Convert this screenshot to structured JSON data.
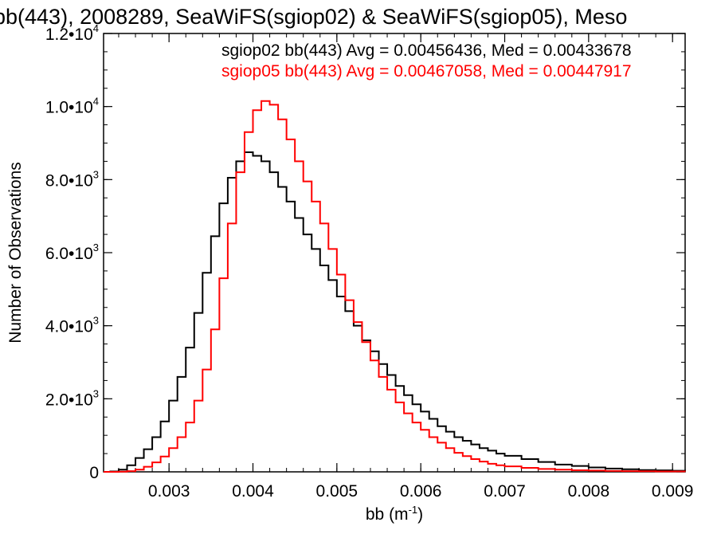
{
  "chart_data": {
    "type": "line",
    "title": "bb(443), 2008289, SeaWiFS(sgiop02) & SeaWiFS(sgiop05), Meso",
    "xlabel_main": "bb (m",
    "xlabel_sup": "-1",
    "xlabel_close": ")",
    "ylabel": "Number of Observations",
    "xlim": [
      0.00222,
      0.00915
    ],
    "ylim": [
      0,
      12000
    ],
    "x_ticks": [
      {
        "value": 0.003,
        "label": "0.003"
      },
      {
        "value": 0.004,
        "label": "0.004"
      },
      {
        "value": 0.005,
        "label": "0.005"
      },
      {
        "value": 0.006,
        "label": "0.006"
      },
      {
        "value": 0.007,
        "label": "0.007"
      },
      {
        "value": 0.008,
        "label": "0.008"
      },
      {
        "value": 0.009,
        "label": "0.009"
      }
    ],
    "y_ticks": [
      {
        "value": 0,
        "mant": "0",
        "exp": ""
      },
      {
        "value": 2000,
        "mant": "2.0•10",
        "exp": "3"
      },
      {
        "value": 4000,
        "mant": "4.0•10",
        "exp": "3"
      },
      {
        "value": 6000,
        "mant": "6.0•10",
        "exp": "3"
      },
      {
        "value": 8000,
        "mant": "8.0•10",
        "exp": "3"
      },
      {
        "value": 10000,
        "mant": "1.0•10",
        "exp": "4"
      },
      {
        "value": 12000,
        "mant": "1.2•10",
        "exp": "4"
      }
    ],
    "x_minor_step": 0.0002,
    "y_minor_step": 500,
    "step_histogram": true,
    "series": [
      {
        "name": "sgiop02 bb(443) Avg = 0.00456436, Med = 0.00433678",
        "color": "#000000",
        "x": [
          0.00222,
          0.0023,
          0.0024,
          0.0025,
          0.0026,
          0.0027,
          0.0028,
          0.0029,
          0.003,
          0.0031,
          0.0032,
          0.0033,
          0.0034,
          0.0035,
          0.0036,
          0.0037,
          0.0038,
          0.0039,
          0.004,
          0.0041,
          0.0042,
          0.0043,
          0.0044,
          0.0045,
          0.0046,
          0.0047,
          0.0048,
          0.0049,
          0.005,
          0.0051,
          0.0052,
          0.0053,
          0.0054,
          0.0055,
          0.0056,
          0.0057,
          0.0058,
          0.0059,
          0.006,
          0.0061,
          0.0062,
          0.0063,
          0.0064,
          0.0065,
          0.0066,
          0.0067,
          0.0068,
          0.0069,
          0.007,
          0.0072,
          0.0074,
          0.0076,
          0.0078,
          0.008,
          0.0082,
          0.0084,
          0.0086,
          0.0088,
          0.009,
          0.00915
        ],
        "values": [
          0,
          10,
          60,
          180,
          380,
          620,
          950,
          1380,
          1950,
          2600,
          3400,
          4350,
          5450,
          6450,
          7350,
          8050,
          8500,
          8750,
          8650,
          8500,
          8200,
          7800,
          7400,
          6950,
          6500,
          6100,
          5650,
          5250,
          4800,
          4400,
          4000,
          3600,
          3300,
          2950,
          2650,
          2350,
          2100,
          1850,
          1650,
          1450,
          1250,
          1100,
          950,
          850,
          750,
          650,
          580,
          500,
          440,
          350,
          270,
          200,
          160,
          120,
          90,
          70,
          50,
          40,
          30,
          25
        ]
      },
      {
        "name": "sgiop05 bb(443) Avg = 0.00467058, Med = 0.00447917",
        "color": "#ff0000",
        "x": [
          0.00222,
          0.0023,
          0.0024,
          0.0025,
          0.0026,
          0.0027,
          0.0028,
          0.0029,
          0.003,
          0.0031,
          0.0032,
          0.0033,
          0.0034,
          0.0035,
          0.0036,
          0.0037,
          0.0038,
          0.0039,
          0.004,
          0.0041,
          0.0042,
          0.0043,
          0.0044,
          0.0045,
          0.0046,
          0.0047,
          0.0048,
          0.0049,
          0.005,
          0.0051,
          0.0052,
          0.0053,
          0.0054,
          0.0055,
          0.0056,
          0.0057,
          0.0058,
          0.0059,
          0.006,
          0.0061,
          0.0062,
          0.0063,
          0.0064,
          0.0065,
          0.0066,
          0.0067,
          0.0068,
          0.0069,
          0.007,
          0.0072,
          0.0074,
          0.0076,
          0.0078,
          0.008,
          0.0082,
          0.0084,
          0.0086,
          0.0088,
          0.009,
          0.00915
        ],
        "values": [
          0,
          0,
          5,
          20,
          60,
          140,
          260,
          420,
          650,
          950,
          1350,
          1950,
          2800,
          3900,
          5300,
          6800,
          8200,
          9300,
          9900,
          10150,
          10050,
          9650,
          9100,
          8500,
          7950,
          7400,
          6800,
          6100,
          5400,
          4700,
          4100,
          3550,
          3050,
          2600,
          2250,
          1900,
          1600,
          1350,
          1150,
          950,
          800,
          650,
          520,
          430,
          350,
          280,
          220,
          180,
          150,
          110,
          80,
          60,
          45,
          35,
          25,
          20,
          15,
          12,
          10,
          8
        ]
      }
    ]
  }
}
